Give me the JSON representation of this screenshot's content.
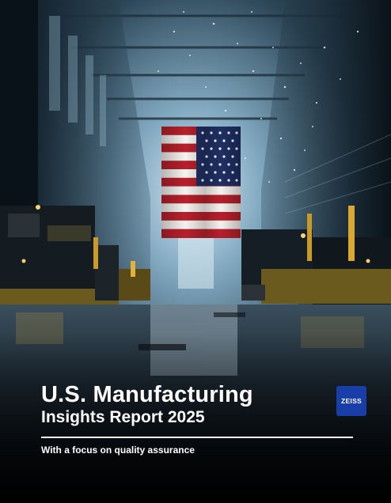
{
  "cover": {
    "title_line1": "U.S. Manufacturing",
    "title_line2": "Insights Report 2025",
    "subtitle": "With a focus on quality assurance"
  },
  "logo": {
    "text": "ZEISS",
    "color": "#1a3ea8"
  },
  "photo": {
    "subject": "american-flag-in-factory-hall"
  }
}
